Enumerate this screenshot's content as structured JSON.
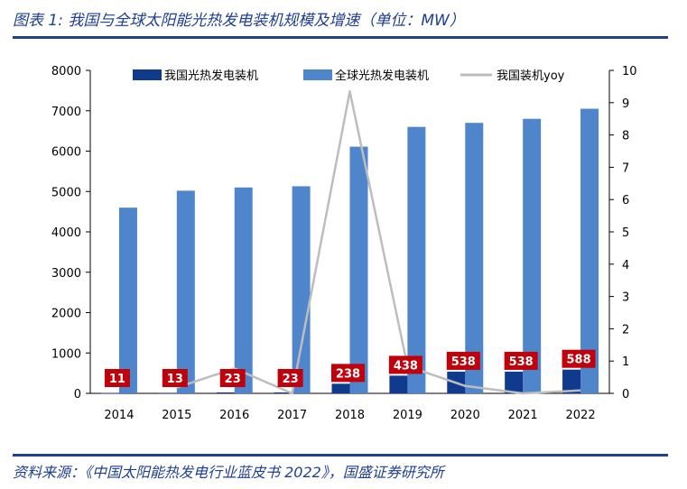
{
  "header": {
    "title": "图表 1: 我国与全球太阳能光热发电装机规模及增速（单位：MW）"
  },
  "footer": {
    "source": "资料来源：《中国太阳能热发电行业蓝皮书 2022》，国盛证券研究所"
  },
  "colors": {
    "china": "#0f3a8e",
    "global": "#4f86cb",
    "yoy": "#bdbdbd",
    "label_bg": "#c0000a",
    "brand": "#1f3f8f"
  },
  "chart_data": {
    "type": "bar",
    "categories": [
      "2014",
      "2015",
      "2016",
      "2017",
      "2018",
      "2019",
      "2020",
      "2021",
      "2022"
    ],
    "series": [
      {
        "name": "我国光热发电装机",
        "type": "bar",
        "axis": "left",
        "values": [
          11,
          13,
          23,
          23,
          238,
          438,
          538,
          538,
          588
        ]
      },
      {
        "name": "全球光热发电装机",
        "type": "bar",
        "axis": "left",
        "values": [
          4600,
          5020,
          5100,
          5130,
          6110,
          6600,
          6700,
          6800,
          7050
        ]
      },
      {
        "name": "我国装机yoy",
        "type": "line",
        "axis": "right",
        "values": [
          null,
          0.18,
          0.77,
          0.0,
          9.35,
          0.84,
          0.23,
          0.0,
          0.09
        ]
      }
    ],
    "data_labels": [
      "11",
      "13",
      "23",
      "23",
      "238",
      "438",
      "538",
      "538",
      "588"
    ],
    "left_axis": {
      "min": 0,
      "max": 8000,
      "ticks": [
        "0",
        "1000",
        "2000",
        "3000",
        "4000",
        "5000",
        "6000",
        "7000",
        "8000"
      ]
    },
    "right_axis": {
      "min": 0,
      "max": 10,
      "ticks": [
        "0",
        "1",
        "2",
        "3",
        "4",
        "5",
        "6",
        "7",
        "8",
        "9",
        "10"
      ]
    },
    "legend_position": "top",
    "grid": false
  }
}
